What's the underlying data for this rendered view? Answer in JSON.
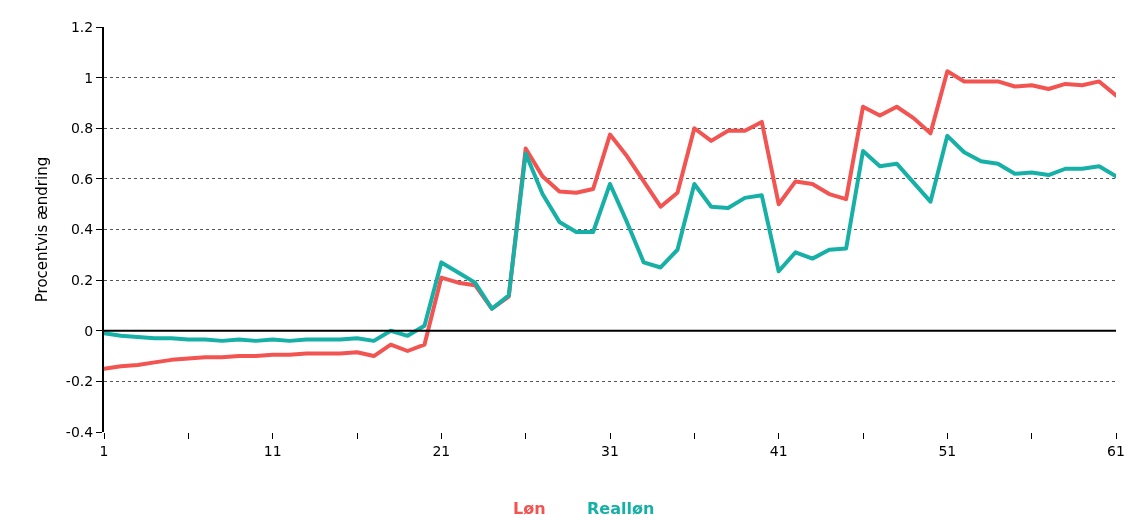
{
  "chart_data": {
    "type": "line",
    "ylabel": "Procentvis ændring",
    "x": [
      1,
      2,
      3,
      4,
      5,
      6,
      7,
      8,
      9,
      10,
      11,
      12,
      13,
      14,
      15,
      16,
      17,
      18,
      19,
      20,
      21,
      22,
      23,
      24,
      25,
      26,
      27,
      28,
      29,
      30,
      31,
      32,
      33,
      34,
      35,
      36,
      37,
      38,
      39,
      40,
      41,
      42,
      43,
      44,
      45,
      46,
      47,
      48,
      49,
      50,
      51,
      52,
      53,
      54,
      55,
      56,
      57,
      58,
      59,
      60,
      61
    ],
    "series": [
      {
        "name": "Løn",
        "color": "#f25452",
        "values": [
          -0.15,
          -0.14,
          -0.135,
          -0.125,
          -0.115,
          -0.11,
          -0.105,
          -0.105,
          -0.1,
          -0.1,
          -0.095,
          -0.095,
          -0.09,
          -0.09,
          -0.09,
          -0.085,
          -0.1,
          -0.055,
          -0.08,
          -0.055,
          0.21,
          0.19,
          0.18,
          0.087,
          0.135,
          0.72,
          0.61,
          0.55,
          0.545,
          0.56,
          0.775,
          0.69,
          0.59,
          0.49,
          0.545,
          0.8,
          0.75,
          0.79,
          0.79,
          0.825,
          0.5,
          0.59,
          0.58,
          0.54,
          0.52,
          0.885,
          0.85,
          0.885,
          0.84,
          0.78,
          1.025,
          0.985,
          0.985,
          0.985,
          0.965,
          0.97,
          0.955,
          0.975,
          0.97,
          0.985,
          0.93
        ]
      },
      {
        "name": "Realløn",
        "color": "#17b0a7",
        "values": [
          -0.01,
          -0.02,
          -0.025,
          -0.03,
          -0.03,
          -0.035,
          -0.035,
          -0.04,
          -0.035,
          -0.04,
          -0.035,
          -0.04,
          -0.035,
          -0.035,
          -0.035,
          -0.03,
          -0.04,
          0.0,
          -0.02,
          0.02,
          0.27,
          0.23,
          0.19,
          0.087,
          0.14,
          0.7,
          0.54,
          0.43,
          0.39,
          0.39,
          0.58,
          0.43,
          0.27,
          0.25,
          0.32,
          0.58,
          0.49,
          0.485,
          0.525,
          0.535,
          0.235,
          0.31,
          0.285,
          0.32,
          0.325,
          0.71,
          0.65,
          0.66,
          0.585,
          0.51,
          0.77,
          0.705,
          0.67,
          0.66,
          0.62,
          0.625,
          0.615,
          0.64,
          0.64,
          0.65,
          0.61
        ]
      }
    ],
    "xlim": [
      1,
      61
    ],
    "xticks": [
      1,
      {
        "value": 6,
        "label": null
      },
      11,
      {
        "value": 16,
        "label": null
      },
      21,
      {
        "value": 26,
        "label": null
      },
      31,
      {
        "value": 36,
        "label": null
      },
      41,
      {
        "value": 46,
        "label": null
      },
      51,
      {
        "value": 56,
        "label": null
      },
      61
    ],
    "ylim": [
      -0.4,
      1.2
    ],
    "yticks": [
      {
        "value": -0.4,
        "label": "-0.4"
      },
      {
        "value": -0.2,
        "label": "-0.2"
      },
      0,
      0.2,
      0.4,
      0.6,
      0.8,
      1,
      1.2
    ],
    "ref_lines": [
      {
        "axis": "y",
        "value": 0,
        "color": "#000000"
      }
    ],
    "grid": "y",
    "legend": "bottom",
    "marker": "none",
    "line_style": "solid"
  }
}
